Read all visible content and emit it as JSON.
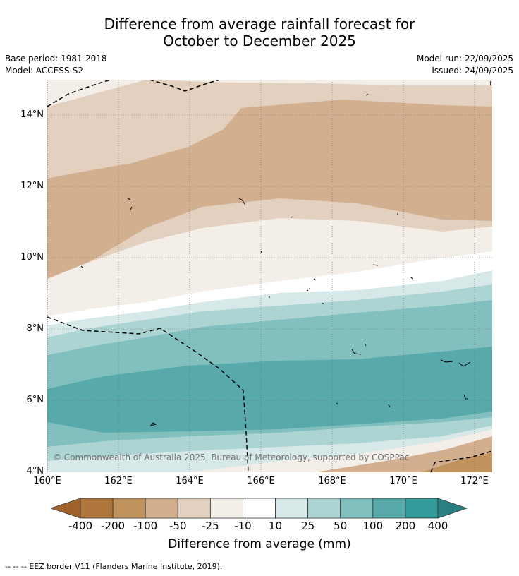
{
  "title_line1": "Difference from average rainfall forecast for",
  "title_line2": "October to December 2025",
  "base_period": "Base period: 1981-2018",
  "model": "Model: ACCESS-S2",
  "model_run": "Model run: 22/09/2025",
  "issued": "Issued: 24/09/2025",
  "copyright": "© Commonwealth of Australia 2025, Bureau of Meteorology, supported by COSPPac",
  "lat_labels": [
    "14°N",
    "12°N",
    "10°N",
    "8°N",
    "6°N",
    "4°N"
  ],
  "lon_labels": [
    "160°E",
    "162°E",
    "164°E",
    "166°E",
    "168°E",
    "170°E",
    "172°E"
  ],
  "colorbar": {
    "title": "Difference from average (mm)",
    "labels": [
      "-400",
      "-200",
      "-100",
      "-50",
      "-25",
      "-10",
      "10",
      "25",
      "50",
      "100",
      "200",
      "400"
    ],
    "colors": [
      "#a0622a",
      "#b0773d",
      "#c0925e",
      "#d2af8f",
      "#e3d0bf",
      "#f3eee8",
      "#ffffff",
      "#d6e8e8",
      "#acd4d3",
      "#82c0c0",
      "#58a9aa",
      "#349b9b",
      "#2a8080"
    ]
  },
  "footer": "--  --  -- EEZ border V11 (Flanders Marine Institute, 2019)."
}
